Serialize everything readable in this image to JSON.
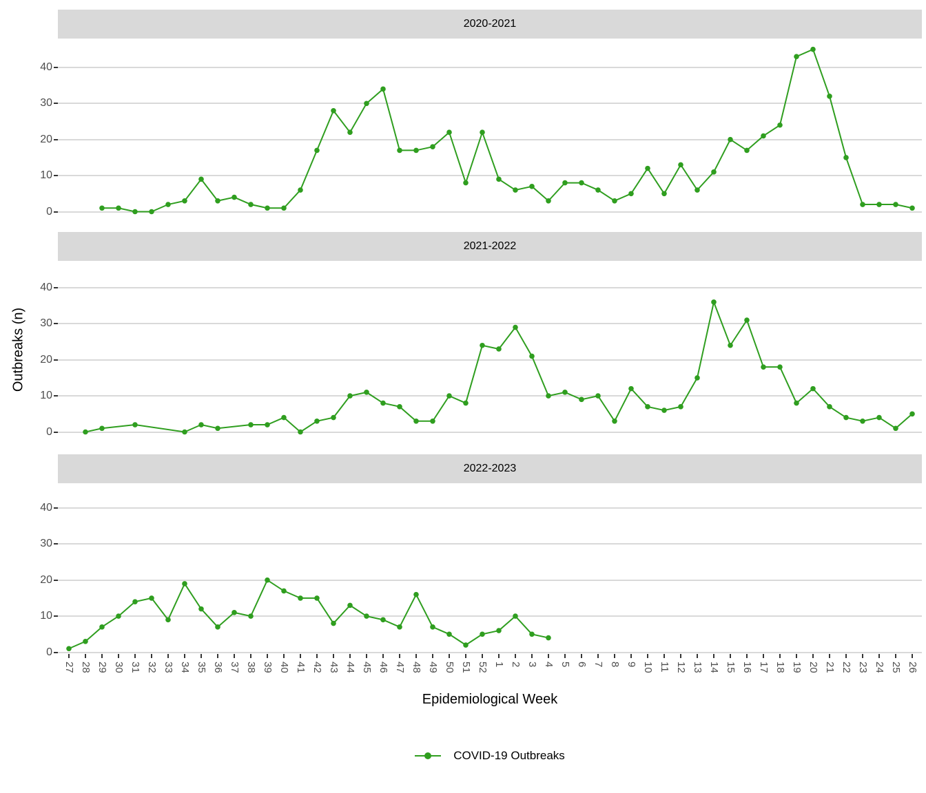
{
  "y_axis": {
    "title": "Outbreaks (n)",
    "ticks": [
      "0",
      "10",
      "20",
      "30",
      "40"
    ]
  },
  "x_axis": {
    "title": "Epidemiological Week"
  },
  "legend": {
    "label": "COVID-19 Outbreaks"
  },
  "colors": {
    "series_green": "#2f9e1f",
    "grid": "#d9d9d9",
    "strip_bg": "#d9d9d9",
    "axis_text": "#4d4d4d",
    "tick_mark": "#333333",
    "title_text": "#000000"
  },
  "chart_data": {
    "type": "line",
    "series_name": "COVID-19 Outbreaks",
    "xlabel": "Epidemiological Week",
    "ylabel": "Outbreaks (n)",
    "ylim": [
      0,
      45
    ],
    "yticks": [
      0,
      10,
      20,
      30,
      40
    ],
    "grid": "horizontal-major-only",
    "legend_position": "bottom",
    "categories": [
      "27",
      "28",
      "29",
      "30",
      "31",
      "32",
      "33",
      "34",
      "35",
      "36",
      "37",
      "38",
      "39",
      "40",
      "41",
      "42",
      "43",
      "44",
      "45",
      "46",
      "47",
      "48",
      "49",
      "50",
      "51",
      "52",
      "1",
      "2",
      "3",
      "4",
      "5",
      "6",
      "7",
      "8",
      "9",
      "10",
      "11",
      "12",
      "13",
      "14",
      "15",
      "16",
      "17",
      "18",
      "19",
      "20",
      "21",
      "22",
      "23",
      "24",
      "25",
      "26"
    ],
    "facets": [
      {
        "label": "2020-2021",
        "values": [
          null,
          null,
          1,
          1,
          0,
          0,
          2,
          3,
          9,
          3,
          4,
          2,
          1,
          1,
          6,
          17,
          28,
          22,
          30,
          34,
          17,
          17,
          18,
          22,
          8,
          22,
          9,
          6,
          7,
          3,
          8,
          8,
          6,
          3,
          5,
          12,
          5,
          13,
          6,
          11,
          20,
          17,
          21,
          24,
          43,
          45,
          32,
          15,
          2,
          2,
          2,
          1
        ]
      },
      {
        "label": "2021-2022",
        "values": [
          null,
          0,
          1,
          null,
          2,
          null,
          null,
          0,
          2,
          1,
          null,
          2,
          2,
          4,
          0,
          3,
          4,
          10,
          11,
          8,
          7,
          3,
          3,
          10,
          8,
          24,
          23,
          29,
          21,
          10,
          11,
          9,
          10,
          3,
          12,
          7,
          6,
          7,
          15,
          36,
          24,
          31,
          18,
          18,
          8,
          12,
          7,
          4,
          3,
          4,
          1,
          5
        ]
      },
      {
        "label": "2022-2023",
        "values": [
          1,
          3,
          7,
          10,
          14,
          15,
          9,
          19,
          12,
          7,
          11,
          10,
          20,
          17,
          15,
          15,
          8,
          13,
          10,
          9,
          7,
          16,
          7,
          5,
          2,
          5,
          6,
          10,
          5,
          4,
          null,
          null,
          null,
          null,
          null,
          null,
          null,
          null,
          null,
          null,
          null,
          null,
          null,
          null,
          null,
          null,
          null,
          null,
          null,
          null,
          null,
          null
        ]
      }
    ]
  }
}
